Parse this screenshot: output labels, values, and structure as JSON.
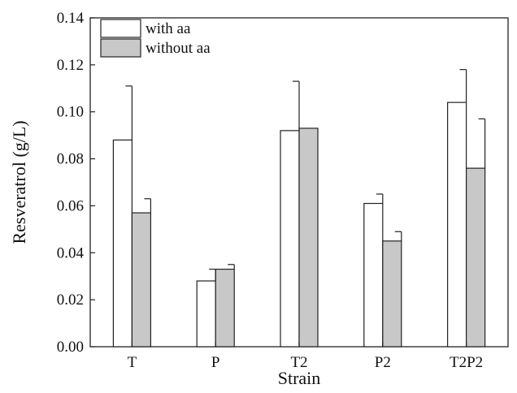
{
  "chart_data": {
    "type": "bar",
    "title": "",
    "xlabel": "Strain",
    "ylabel": "Resveratrol (g/L)",
    "categories": [
      "T",
      "P",
      "T2",
      "P2",
      "T2P2"
    ],
    "ylim": [
      0,
      0.14
    ],
    "yticks": [
      "0.00",
      "0.02",
      "0.04",
      "0.06",
      "0.08",
      "0.10",
      "0.12",
      "0.14"
    ],
    "legend_position": "top-left",
    "grid": false,
    "series": [
      {
        "name": "with aa",
        "values": [
          0.088,
          0.028,
          0.092,
          0.061,
          0.104
        ],
        "errors": [
          0.023,
          0.005,
          0.021,
          0.004,
          0.014
        ],
        "color": "#ffffff"
      },
      {
        "name": "without aa",
        "values": [
          0.057,
          0.033,
          0.093,
          0.045,
          0.076
        ],
        "errors": [
          0.006,
          0.002,
          0.0,
          0.004,
          0.021
        ],
        "color": "#c8c8c8"
      }
    ]
  }
}
